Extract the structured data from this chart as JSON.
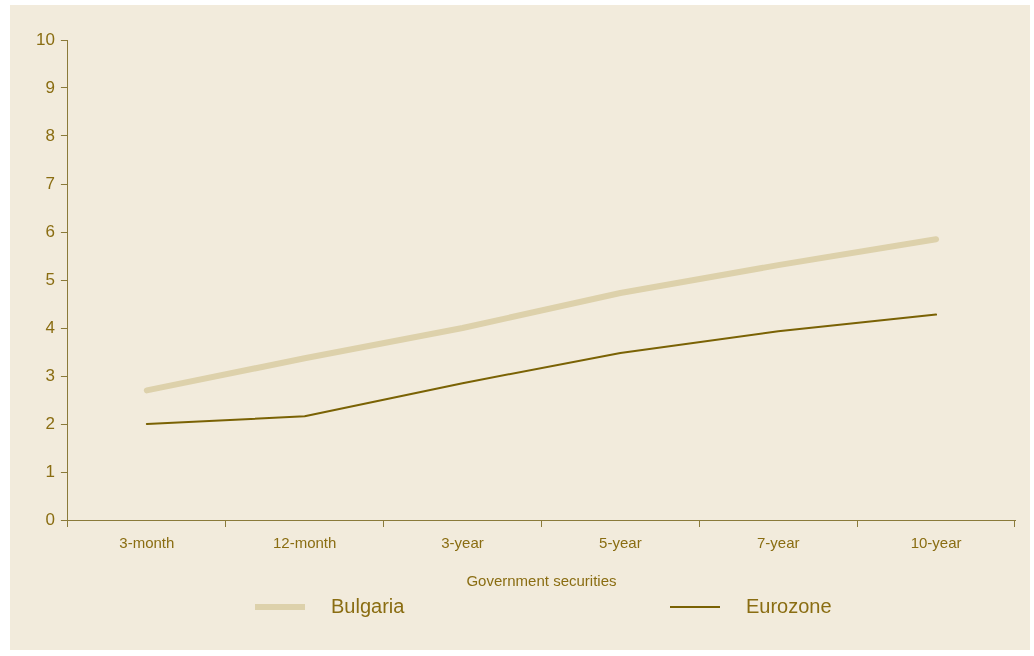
{
  "chart_data": {
    "type": "line",
    "xlabel": "Government securities",
    "categories": [
      "3-month",
      "12-month",
      "3-year",
      "5-year",
      "7-year",
      "10-year"
    ],
    "series": [
      {
        "name": "Bulgaria",
        "color": "#ddd1ab",
        "values": [
          2.7,
          3.37,
          4.0,
          4.73,
          5.31,
          5.85
        ]
      },
      {
        "name": "Eurozone",
        "color": "#7a6204",
        "values": [
          2.0,
          2.16,
          2.85,
          3.48,
          3.93,
          4.28
        ]
      }
    ],
    "ylim": [
      0,
      10
    ],
    "yticks": [
      0,
      1,
      2,
      3,
      4,
      5,
      6,
      7,
      8,
      9,
      10
    ],
    "grid": false,
    "legend": "bottom",
    "marker": "none",
    "line_style": "solid"
  }
}
